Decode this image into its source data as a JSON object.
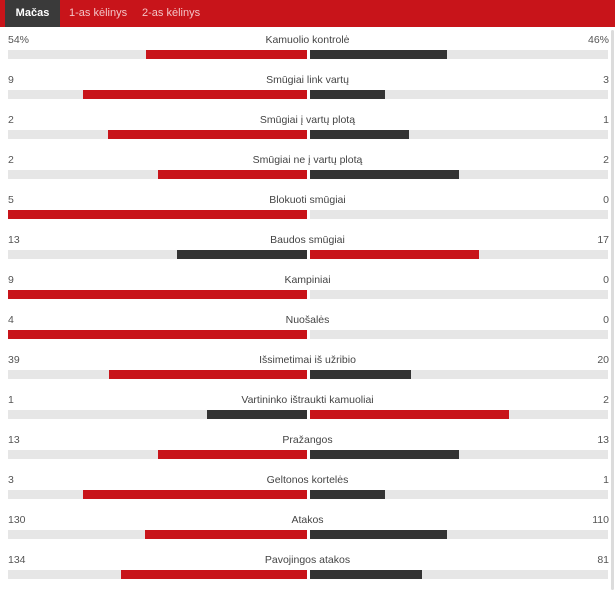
{
  "tabs": [
    {
      "label": "Mačas",
      "active": true
    },
    {
      "label": "1-as kėlinys",
      "active": false
    },
    {
      "label": "2-as kėlinys",
      "active": false
    }
  ],
  "colors": {
    "home": "#c8141a",
    "away": "#333333",
    "track": "#e6e6e6",
    "tab_bar": "#c8141a",
    "tab_active": "#3a3a3a"
  },
  "stats": [
    {
      "label": "Kamuolio kontrolė",
      "home": "54%",
      "away": "46%",
      "home_value": 54,
      "away_value": 46
    },
    {
      "label": "Smūgiai link vartų",
      "home": "9",
      "away": "3",
      "home_value": 9,
      "away_value": 3
    },
    {
      "label": "Smūgiai į vartų plotą",
      "home": "2",
      "away": "1",
      "home_value": 2,
      "away_value": 1
    },
    {
      "label": "Smūgiai ne į vartų plotą",
      "home": "2",
      "away": "2",
      "home_value": 2,
      "away_value": 2
    },
    {
      "label": "Blokuoti smūgiai",
      "home": "5",
      "away": "0",
      "home_value": 5,
      "away_value": 0
    },
    {
      "label": "Baudos smūgiai",
      "home": "13",
      "away": "17",
      "home_value": 13,
      "away_value": 17
    },
    {
      "label": "Kampiniai",
      "home": "9",
      "away": "0",
      "home_value": 9,
      "away_value": 0
    },
    {
      "label": "Nuošalės",
      "home": "4",
      "away": "0",
      "home_value": 4,
      "away_value": 0
    },
    {
      "label": "Išsimetimai iš užribio",
      "home": "39",
      "away": "20",
      "home_value": 39,
      "away_value": 20
    },
    {
      "label": "Vartininko ištraukti kamuoliai",
      "home": "1",
      "away": "2",
      "home_value": 1,
      "away_value": 2
    },
    {
      "label": "Pražangos",
      "home": "13",
      "away": "13",
      "home_value": 13,
      "away_value": 13
    },
    {
      "label": "Geltonos kortelės",
      "home": "3",
      "away": "1",
      "home_value": 3,
      "away_value": 1
    },
    {
      "label": "Atakos",
      "home": "130",
      "away": "110",
      "home_value": 130,
      "away_value": 110
    },
    {
      "label": "Pavojingos atakos",
      "home": "134",
      "away": "81",
      "home_value": 134,
      "away_value": 81
    }
  ]
}
